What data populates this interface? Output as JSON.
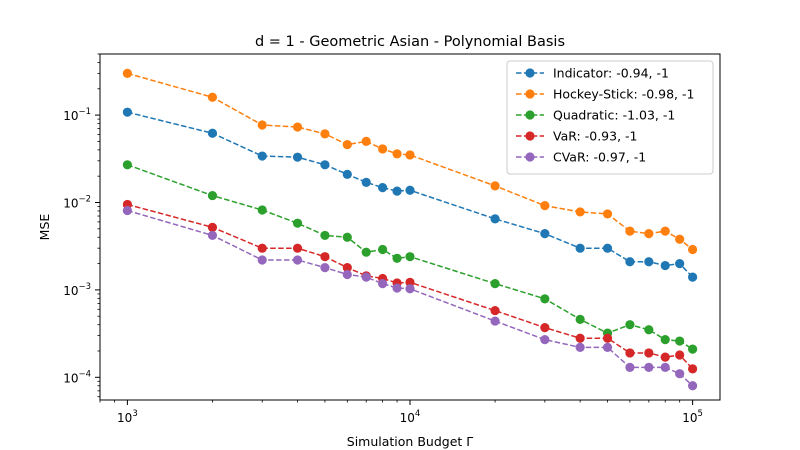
{
  "chart_data": {
    "type": "line",
    "title": "d = 1 - Geometric Asian - Polynomial Basis",
    "xlabel": "Simulation Budget Γ",
    "ylabel": "MSE",
    "xscale": "log",
    "yscale": "log",
    "xlim": [
      800,
      125000
    ],
    "ylim": [
      5.5e-05,
      0.5
    ],
    "grid": false,
    "legend_position": "top-right",
    "x_ticks": [
      {
        "value": 1000,
        "base": "10",
        "exp": "3"
      },
      {
        "value": 10000,
        "base": "10",
        "exp": "4"
      },
      {
        "value": 100000,
        "base": "10",
        "exp": "5"
      }
    ],
    "y_ticks": [
      {
        "value": 0.0001,
        "base": "10",
        "exp": "−4"
      },
      {
        "value": 0.001,
        "base": "10",
        "exp": "−3"
      },
      {
        "value": 0.01,
        "base": "10",
        "exp": "−2"
      },
      {
        "value": 0.1,
        "base": "10",
        "exp": "−1"
      }
    ],
    "x": [
      1000,
      2000,
      3000,
      4000,
      5000,
      6000,
      7000,
      8000,
      9000,
      10000,
      20000,
      30000,
      40000,
      50000,
      60000,
      70000,
      80000,
      90000,
      100000
    ],
    "series": [
      {
        "name": "Indicator: -0.94, -1",
        "color": "#1f77b4",
        "values": [
          0.108,
          0.062,
          0.034,
          0.033,
          0.027,
          0.021,
          0.017,
          0.0148,
          0.0135,
          0.0138,
          0.0065,
          0.0044,
          0.003,
          0.003,
          0.0021,
          0.0021,
          0.0019,
          0.002,
          0.0014
        ]
      },
      {
        "name": "Hockey-Stick: -0.98, -1",
        "color": "#ff7f0e",
        "values": [
          0.3,
          0.16,
          0.077,
          0.073,
          0.061,
          0.046,
          0.05,
          0.041,
          0.036,
          0.035,
          0.0155,
          0.0092,
          0.0078,
          0.0074,
          0.0047,
          0.0044,
          0.0047,
          0.0038,
          0.0029
        ]
      },
      {
        "name": "Quadratic: -1.03, -1",
        "color": "#2ca02c",
        "values": [
          0.027,
          0.012,
          0.0082,
          0.0058,
          0.0042,
          0.004,
          0.0027,
          0.0029,
          0.0023,
          0.0024,
          0.00118,
          0.00079,
          0.00046,
          0.00032,
          0.0004,
          0.00035,
          0.00027,
          0.00026,
          0.00021
        ]
      },
      {
        "name": "VaR: -0.93, -1",
        "color": "#d62728",
        "values": [
          0.0095,
          0.0052,
          0.003,
          0.003,
          0.0024,
          0.0018,
          0.00145,
          0.00135,
          0.0012,
          0.00122,
          0.00058,
          0.00037,
          0.00028,
          0.00028,
          0.00019,
          0.00019,
          0.00017,
          0.00018,
          0.000125
        ]
      },
      {
        "name": "CVaR: -0.97, -1",
        "color": "#9467bd",
        "values": [
          0.0081,
          0.0042,
          0.0022,
          0.0022,
          0.0018,
          0.0015,
          0.0014,
          0.00118,
          0.00105,
          0.00103,
          0.00044,
          0.00027,
          0.00022,
          0.00022,
          0.00013,
          0.00013,
          0.00013,
          0.00011,
          8e-05
        ]
      }
    ]
  }
}
